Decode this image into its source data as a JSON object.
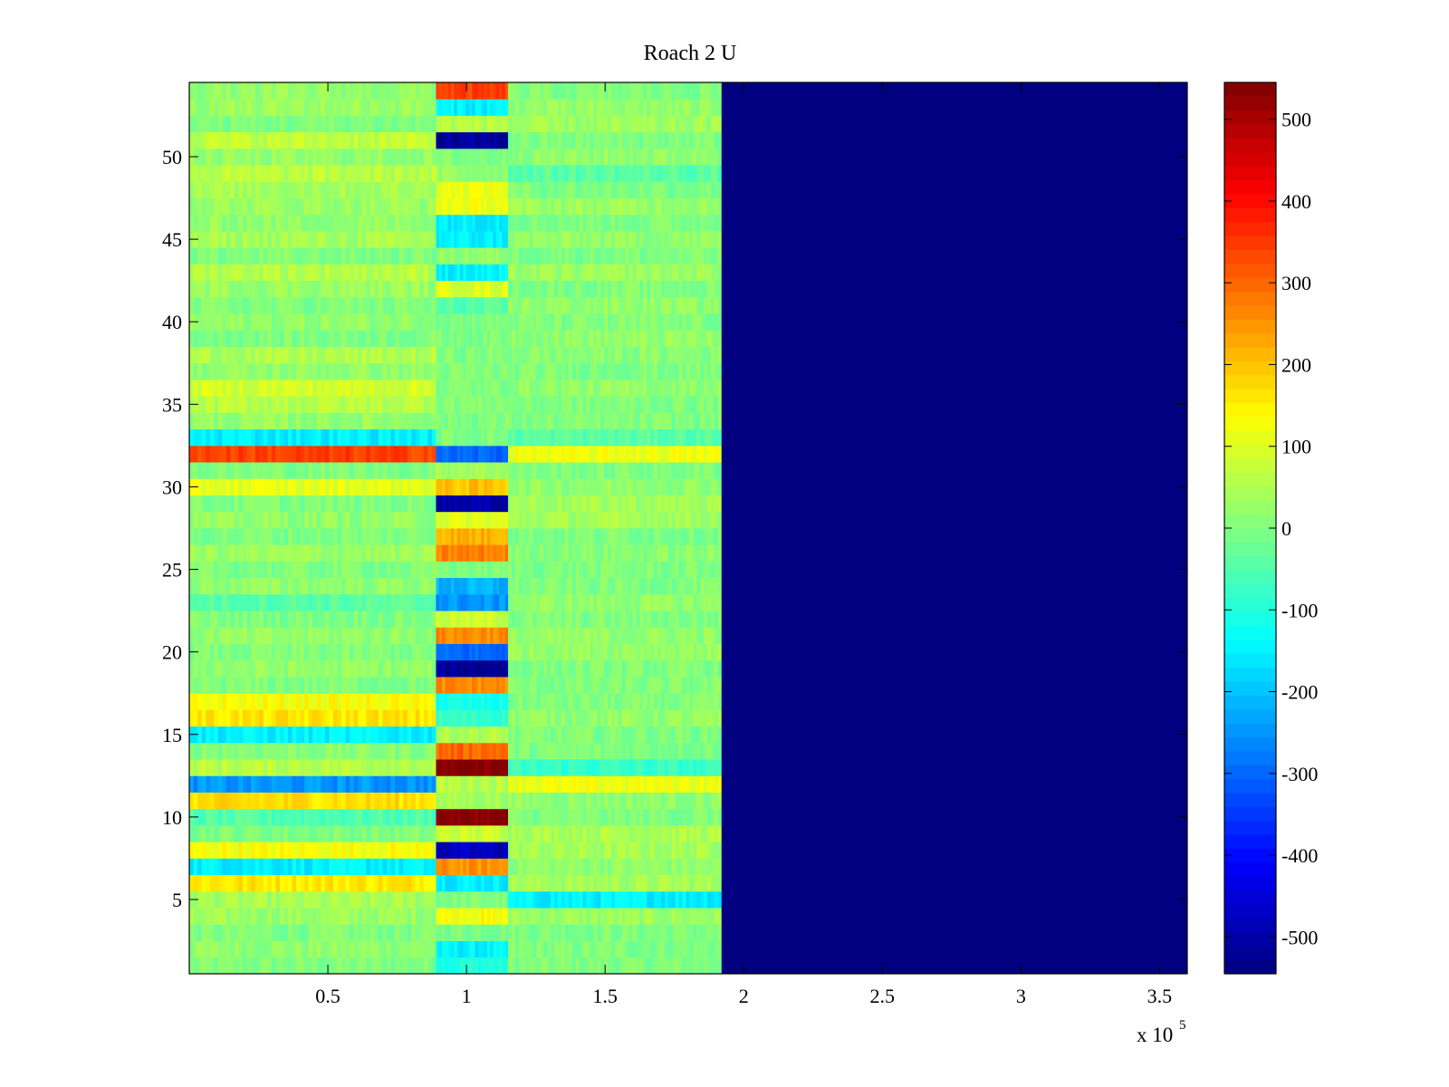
{
  "chart_data": {
    "type": "heatmap",
    "title": "Roach 2 U",
    "xlabel": "",
    "ylabel": "",
    "x_exponent_label": {
      "base": "x 10",
      "exponent": "5"
    },
    "x_scale": 100000,
    "xlim": [
      0,
      360000
    ],
    "ylim": [
      0.5,
      54.5
    ],
    "x_ticks": [
      {
        "value": 50000,
        "label": "0.5"
      },
      {
        "value": 100000,
        "label": "1"
      },
      {
        "value": 150000,
        "label": "1.5"
      },
      {
        "value": 200000,
        "label": "2"
      },
      {
        "value": 250000,
        "label": "2.5"
      },
      {
        "value": 300000,
        "label": "3"
      },
      {
        "value": 350000,
        "label": "3.5"
      }
    ],
    "y_ticks": [
      {
        "value": 5,
        "label": "5"
      },
      {
        "value": 10,
        "label": "10"
      },
      {
        "value": 15,
        "label": "15"
      },
      {
        "value": 20,
        "label": "20"
      },
      {
        "value": 25,
        "label": "25"
      },
      {
        "value": 30,
        "label": "30"
      },
      {
        "value": 35,
        "label": "35"
      },
      {
        "value": 40,
        "label": "40"
      },
      {
        "value": 45,
        "label": "45"
      },
      {
        "value": 50,
        "label": "50"
      }
    ],
    "rows": 54,
    "data_extent_x": 192000,
    "clim": [
      -545,
      545
    ],
    "colormap": "jet",
    "colorbar_ticks": [
      {
        "value": 500,
        "label": "500"
      },
      {
        "value": 400,
        "label": "400"
      },
      {
        "value": 300,
        "label": "300"
      },
      {
        "value": 200,
        "label": "200"
      },
      {
        "value": 100,
        "label": "100"
      },
      {
        "value": 0,
        "label": "0"
      },
      {
        "value": -100,
        "label": "-100"
      },
      {
        "value": -200,
        "label": "-200"
      },
      {
        "value": -300,
        "label": "-300"
      },
      {
        "value": -400,
        "label": "-400"
      },
      {
        "value": -500,
        "label": "-500"
      }
    ],
    "fill_value_beyond_extent": -545,
    "segments": [
      {
        "x_start": 0,
        "x_end": 89000,
        "description_level": "noise around 0 to 100"
      },
      {
        "x_start": 89000,
        "x_end": 115000,
        "description_level": "strong per-row values"
      },
      {
        "x_start": 115000,
        "x_end": 192000,
        "description_level": "noise around 0"
      },
      {
        "x_start": 192000,
        "x_end": 360000,
        "description_level": "constant minimum"
      }
    ],
    "row_values": [
      {
        "row": 1,
        "left": 0,
        "mid": -100,
        "right": 0
      },
      {
        "row": 2,
        "left": 20,
        "mid": -150,
        "right": 0
      },
      {
        "row": 3,
        "left": 0,
        "mid": 0,
        "right": 0
      },
      {
        "row": 4,
        "left": 30,
        "mid": 130,
        "right": 30
      },
      {
        "row": 5,
        "left": 40,
        "mid": 0,
        "right": -150
      },
      {
        "row": 6,
        "left": 160,
        "mid": -150,
        "right": 40
      },
      {
        "row": 7,
        "left": -150,
        "mid": 250,
        "right": 20
      },
      {
        "row": 8,
        "left": 130,
        "mid": -480,
        "right": 40
      },
      {
        "row": 9,
        "left": 0,
        "mid": 80,
        "right": 50
      },
      {
        "row": 10,
        "left": -50,
        "mid": 540,
        "right": 0
      },
      {
        "row": 11,
        "left": 170,
        "mid": 40,
        "right": 20
      },
      {
        "row": 12,
        "left": -250,
        "mid": 60,
        "right": 120
      },
      {
        "row": 13,
        "left": 60,
        "mid": 540,
        "right": -80
      },
      {
        "row": 14,
        "left": 10,
        "mid": 300,
        "right": 0
      },
      {
        "row": 15,
        "left": -150,
        "mid": 50,
        "right": 0
      },
      {
        "row": 16,
        "left": 160,
        "mid": -80,
        "right": 20
      },
      {
        "row": 17,
        "left": 130,
        "mid": -120,
        "right": 0
      },
      {
        "row": 18,
        "left": 0,
        "mid": 260,
        "right": 0
      },
      {
        "row": 19,
        "left": 20,
        "mid": -520,
        "right": 0
      },
      {
        "row": 20,
        "left": 0,
        "mid": -300,
        "right": 30
      },
      {
        "row": 21,
        "left": 20,
        "mid": 260,
        "right": 20
      },
      {
        "row": 22,
        "left": 0,
        "mid": 80,
        "right": 0
      },
      {
        "row": 23,
        "left": -40,
        "mid": -250,
        "right": 20
      },
      {
        "row": 24,
        "left": 20,
        "mid": -220,
        "right": 0
      },
      {
        "row": 25,
        "left": 0,
        "mid": 0,
        "right": 0
      },
      {
        "row": 26,
        "left": 30,
        "mid": 270,
        "right": 10
      },
      {
        "row": 27,
        "left": 0,
        "mid": 220,
        "right": 0
      },
      {
        "row": 28,
        "left": 20,
        "mid": 100,
        "right": 40
      },
      {
        "row": 29,
        "left": 0,
        "mid": -500,
        "right": 40
      },
      {
        "row": 30,
        "left": 110,
        "mid": 200,
        "right": 20
      },
      {
        "row": 31,
        "left": 0,
        "mid": 40,
        "right": 0
      },
      {
        "row": 32,
        "left": 340,
        "mid": -300,
        "right": 120
      },
      {
        "row": 33,
        "left": -150,
        "mid": 0,
        "right": -40
      },
      {
        "row": 34,
        "left": 20,
        "mid": 0,
        "right": 0
      },
      {
        "row": 35,
        "left": 60,
        "mid": 10,
        "right": 0
      },
      {
        "row": 36,
        "left": 90,
        "mid": 0,
        "right": 20
      },
      {
        "row": 37,
        "left": 20,
        "mid": 0,
        "right": 0
      },
      {
        "row": 38,
        "left": 50,
        "mid": 0,
        "right": 10
      },
      {
        "row": 39,
        "left": 0,
        "mid": 0,
        "right": 20
      },
      {
        "row": 40,
        "left": 20,
        "mid": 0,
        "right": 0
      },
      {
        "row": 41,
        "left": 0,
        "mid": -50,
        "right": 20
      },
      {
        "row": 42,
        "left": 30,
        "mid": 100,
        "right": 0
      },
      {
        "row": 43,
        "left": 60,
        "mid": -150,
        "right": 30
      },
      {
        "row": 44,
        "left": 0,
        "mid": 20,
        "right": 0
      },
      {
        "row": 45,
        "left": 40,
        "mid": -150,
        "right": 20
      },
      {
        "row": 46,
        "left": 20,
        "mid": -150,
        "right": 0
      },
      {
        "row": 47,
        "left": 30,
        "mid": 120,
        "right": 30
      },
      {
        "row": 48,
        "left": 40,
        "mid": 120,
        "right": 0
      },
      {
        "row": 49,
        "left": 60,
        "mid": 20,
        "right": -40
      },
      {
        "row": 50,
        "left": 20,
        "mid": 0,
        "right": 20
      },
      {
        "row": 51,
        "left": 70,
        "mid": -520,
        "right": 0
      },
      {
        "row": 52,
        "left": 0,
        "mid": 60,
        "right": 30
      },
      {
        "row": 53,
        "left": 30,
        "mid": -150,
        "right": 20
      },
      {
        "row": 54,
        "left": 20,
        "mid": 340,
        "right": 0
      }
    ]
  }
}
